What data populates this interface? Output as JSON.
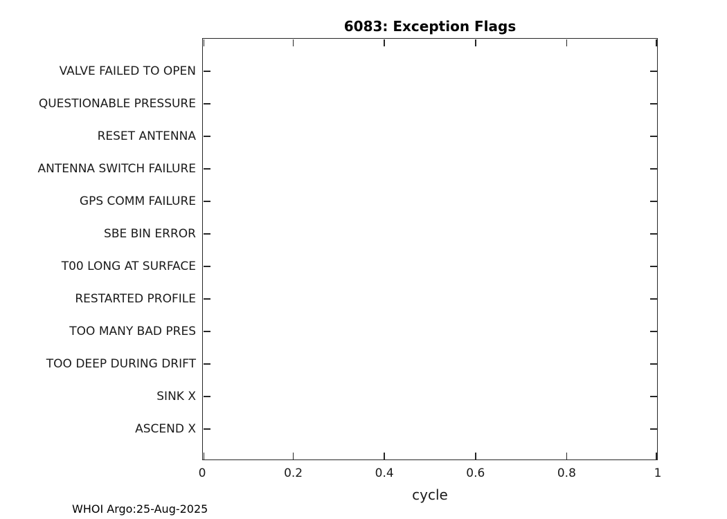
{
  "figure": {
    "background_color": "#ffffff",
    "axis_color": "#262626",
    "text_color": "#1a1a1a",
    "footer": "WHOI Argo:25-Aug-2025"
  },
  "chart_data": {
    "type": "scatter",
    "title": "6083: Exception Flags",
    "xlabel": "cycle",
    "ylabel": "",
    "xlim": [
      0,
      1
    ],
    "x_tick_labels": [
      "0",
      "0.2",
      "0.4",
      "0.6",
      "0.8",
      "1"
    ],
    "x_tick_values": [
      0,
      0.2,
      0.4,
      0.6,
      0.8,
      1
    ],
    "y_categories": [
      "VALVE FAILED TO OPEN",
      "QUESTIONABLE PRESSURE",
      "RESET ANTENNA",
      "ANTENNA SWITCH FAILURE",
      "GPS COMM FAILURE",
      "SBE BIN ERROR",
      "T00 LONG AT SURFACE",
      "RESTARTED PROFILE",
      "TOO MANY BAD PRES",
      "TOO DEEP DURING DRIFT",
      "SINK X",
      "ASCEND X"
    ],
    "series": [],
    "grid": false,
    "legend": null,
    "note": "empty plot area - no data points plotted"
  }
}
